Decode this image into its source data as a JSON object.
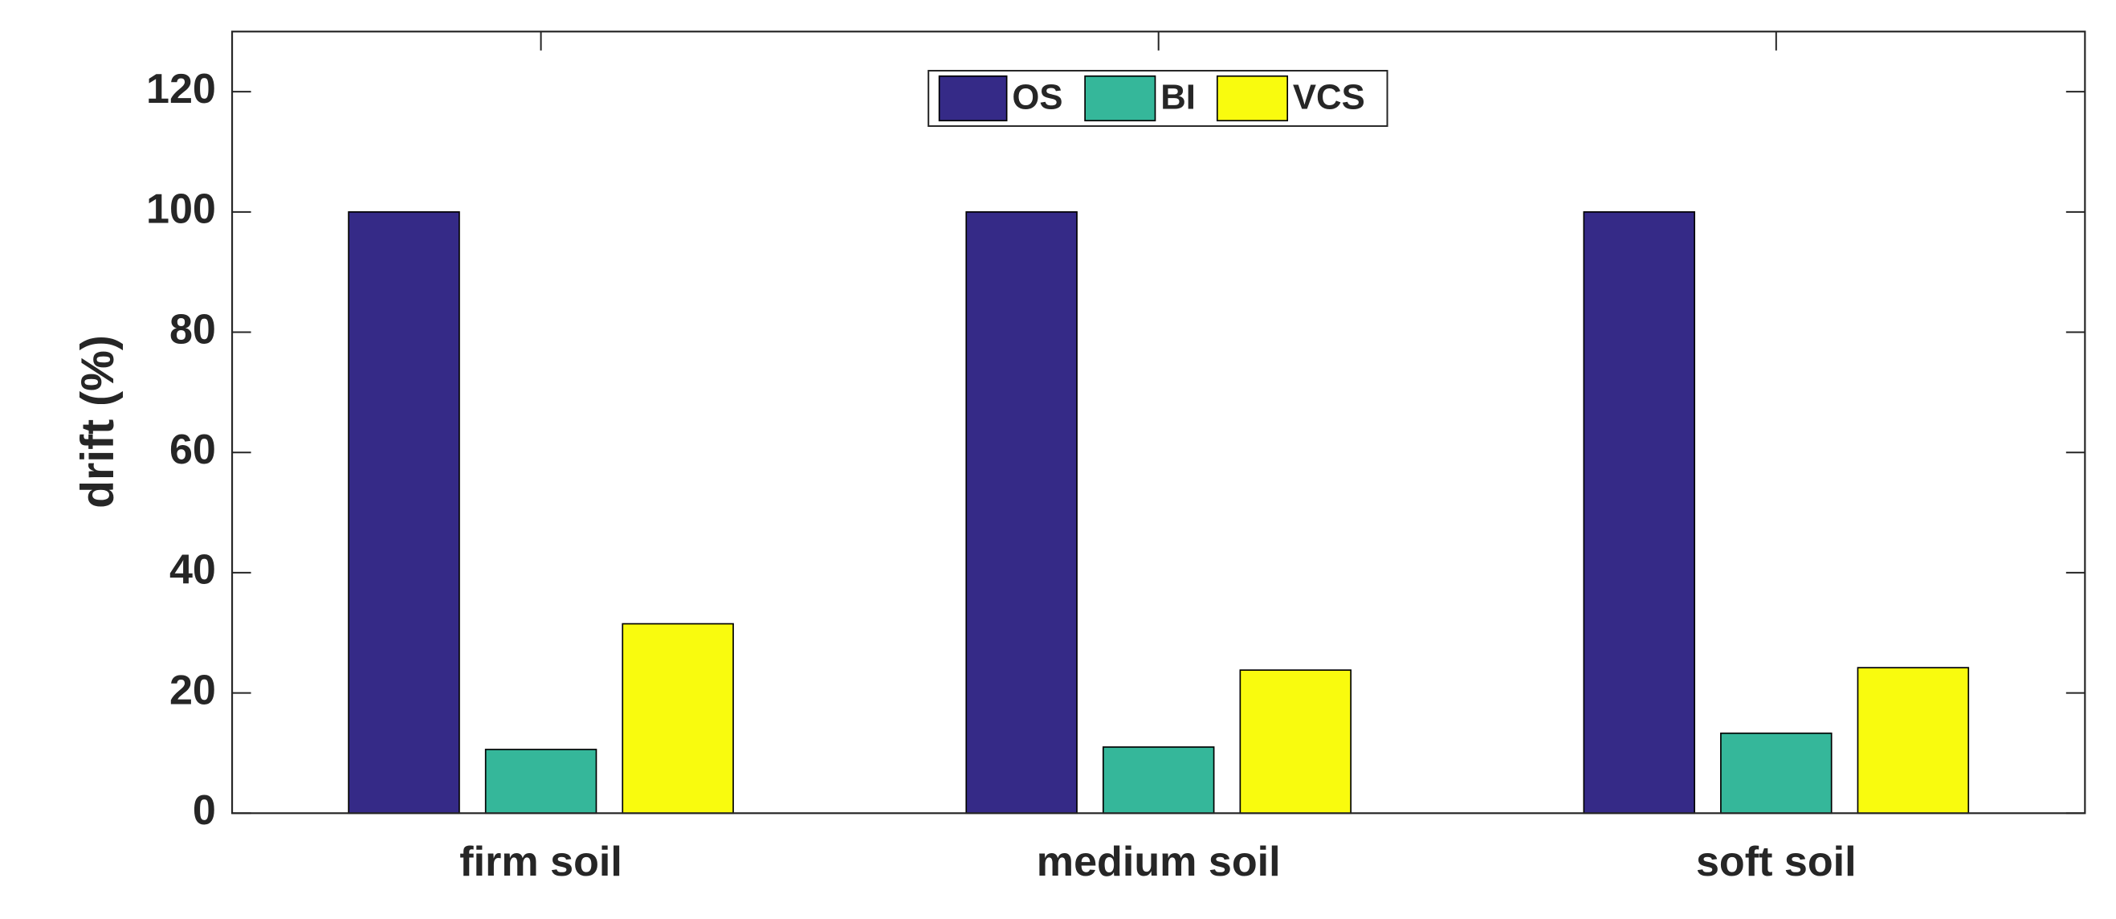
{
  "chart_data": {
    "type": "bar",
    "y_label": "drift (%)",
    "categories": [
      "firm soil",
      "medium soil",
      "soft soil"
    ],
    "series": [
      {
        "name": "OS",
        "color": "#352a87",
        "values": [
          100,
          100,
          100
        ]
      },
      {
        "name": "BI",
        "color": "#35b79a",
        "values": [
          10.6,
          11.0,
          13.3
        ]
      },
      {
        "name": "VCS",
        "color": "#f9fb0e",
        "values": [
          31.5,
          23.8,
          24.2
        ]
      }
    ],
    "ylim": [
      0,
      130
    ],
    "yticks": [
      0,
      20,
      40,
      60,
      80,
      100,
      120
    ],
    "grid": false,
    "legend": "top"
  }
}
